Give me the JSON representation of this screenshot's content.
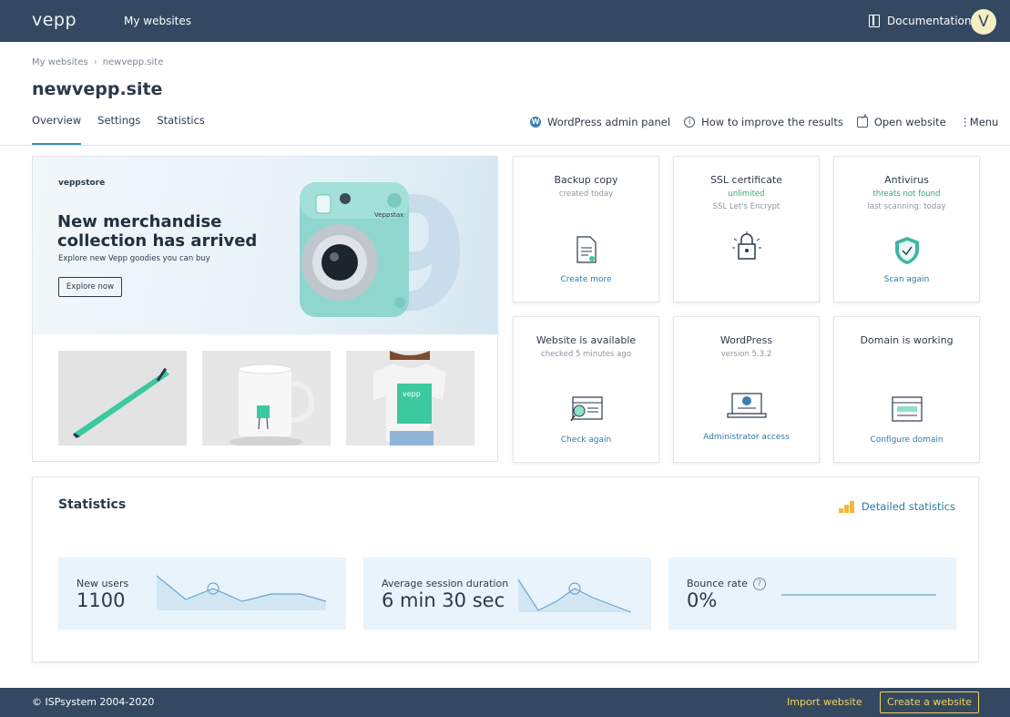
{
  "topbar": {
    "logo": "vepp",
    "nav_my_websites": "My websites",
    "documentation": "Documentation",
    "avatar_letter": "V"
  },
  "breadcrumb": {
    "root": "My websites",
    "separator": "›",
    "current": "newvepp.site"
  },
  "page_title": "newvepp.site",
  "tabs": [
    {
      "label": "Overview",
      "active": true
    },
    {
      "label": "Settings",
      "active": false
    },
    {
      "label": "Statistics",
      "active": false
    }
  ],
  "actions": {
    "wp_admin": "WordPress admin panel",
    "improve": "How to improve the results",
    "open_website": "Open website",
    "menu": "Menu"
  },
  "promo": {
    "brand": "veppstore",
    "headline": "New merchandise collection has arrived",
    "subtext": "Explore new Vepp goodies you can buy",
    "button": "Explore now",
    "camera_brand": "Veppstax",
    "shirt_logo": "vepp"
  },
  "cards": {
    "backup": {
      "title": "Backup copy",
      "sub": "created today",
      "link": "Create more"
    },
    "ssl": {
      "title": "SSL certificate",
      "sub": "unlimited",
      "sub2": "SSL Let's Encrypt"
    },
    "antivirus": {
      "title": "Antivirus",
      "sub": "threats not found",
      "sub2": "last scanning: today",
      "link": "Scan again"
    },
    "available": {
      "title": "Website is available",
      "sub": "checked 5 minutes ago",
      "link": "Check again"
    },
    "wordpress": {
      "title": "WordPress",
      "sub": "version 5.3.2",
      "link": "Administrator access"
    },
    "domain": {
      "title": "Domain is working",
      "link": "Configure domain"
    }
  },
  "statistics": {
    "title": "Statistics",
    "detailed": "Detailed statistics",
    "new_users": {
      "label": "New users",
      "value": "1100"
    },
    "avg_session": {
      "label": "Average session duration",
      "value": "6 min 30 sec"
    },
    "bounce": {
      "label": "Bounce rate",
      "value": "0%",
      "help": "?"
    }
  },
  "footer": {
    "copyright": "© ISPsystem 2004-2020",
    "import": "Import website",
    "create": "Create a website"
  },
  "colors": {
    "topbar": "#344961",
    "accent_blue": "#2e7aa6",
    "green": "#37a879",
    "yellow": "#f3d35a",
    "metric_bg": "#e8f3fb"
  }
}
